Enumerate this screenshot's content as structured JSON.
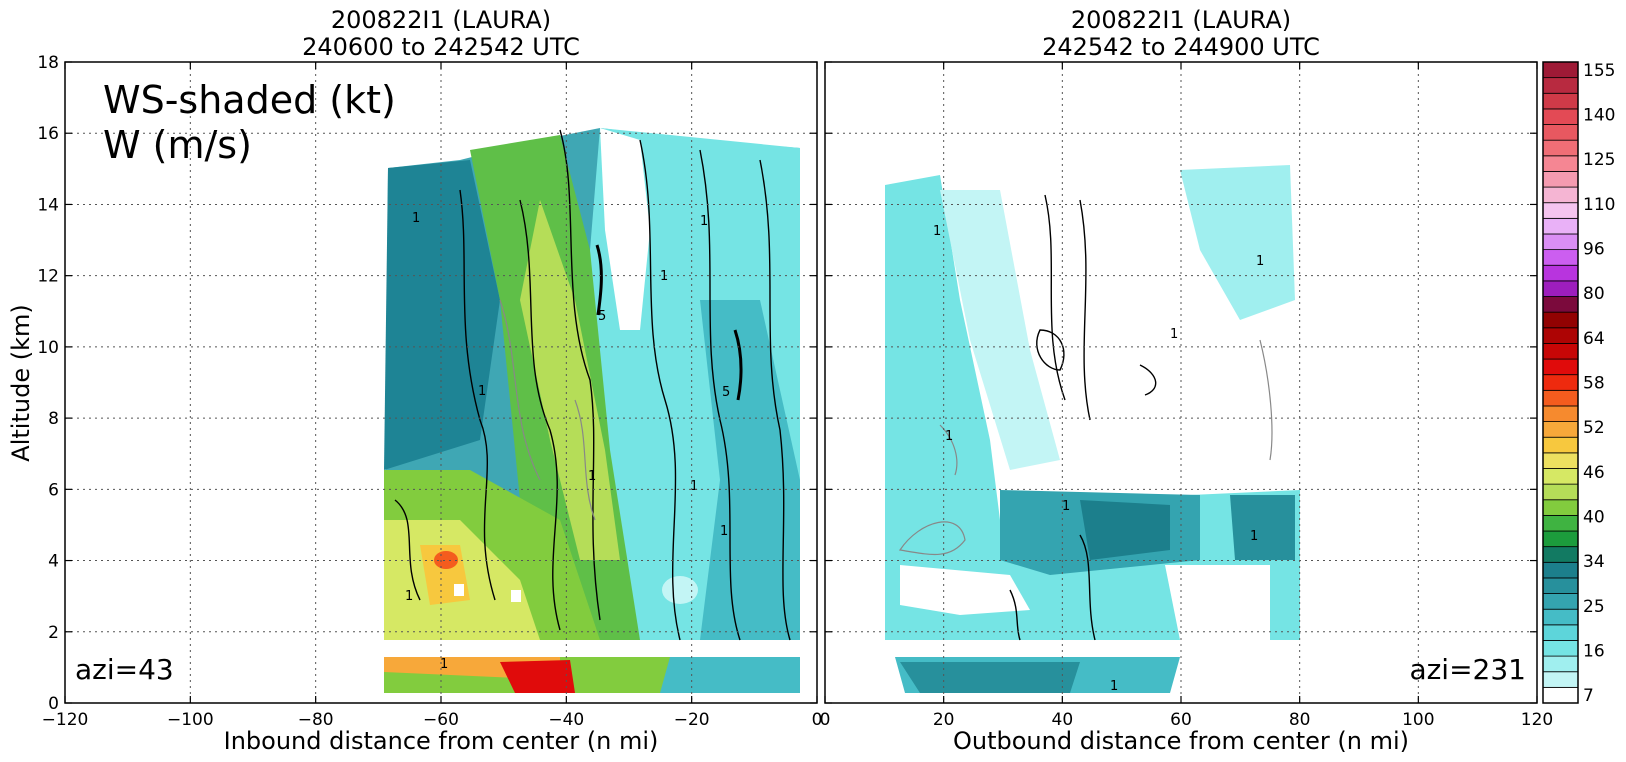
{
  "chart_data": [
    {
      "type": "heatmap",
      "title_line1": "200822I1 (LAURA)",
      "title_line2": "240600 to 242542 UTC",
      "xlabel": "Inbound distance from center (n mi)",
      "ylabel": "Altitude (km)",
      "xlim": [
        -120,
        0
      ],
      "ylim": [
        0,
        18
      ],
      "x_ticks": [
        -120,
        -100,
        -80,
        -60,
        -40,
        -20,
        0
      ],
      "y_ticks": [
        0,
        2,
        4,
        6,
        8,
        10,
        12,
        14,
        16,
        18
      ],
      "grid": true,
      "annotation_main_line1": "WS-shaded (kt)",
      "annotation_main_line2": "W (m/s)",
      "annotation_azimuth": "azi=43",
      "data_extent_x": [
        -69,
        0
      ],
      "data_extent_y": [
        0,
        16
      ],
      "gap_altitude_km": [
        1.35,
        1.8
      ],
      "wind_profile_kt": [
        {
          "x": -65,
          "alt": 1,
          "ws": 46
        },
        {
          "x": -60,
          "alt": 4,
          "ws": 50
        },
        {
          "x": -45,
          "alt": 1,
          "ws": 56
        },
        {
          "x": -40,
          "alt": 8,
          "ws": 40
        },
        {
          "x": -20,
          "alt": 8,
          "ws": 16
        },
        {
          "x": -65,
          "alt": 12,
          "ws": 25
        }
      ],
      "contour_labels": [
        "1",
        "1",
        "1",
        "1",
        "5",
        "1",
        "5",
        "1",
        "1",
        "1",
        "1"
      ]
    },
    {
      "type": "heatmap",
      "title_line1": "200822I1 (LAURA)",
      "title_line2": "242542 to 244900 UTC",
      "xlabel": "Outbound distance from center (n mi)",
      "xlim": [
        0,
        120
      ],
      "ylim": [
        0,
        18
      ],
      "x_ticks": [
        0,
        20,
        40,
        60,
        80,
        100,
        120
      ],
      "grid": true,
      "annotation_azimuth": "azi=231",
      "data_extent_x": [
        10,
        80
      ],
      "data_extent_y": [
        0,
        15
      ],
      "gap_altitude_km": [
        1.35,
        1.8
      ],
      "wind_profile_kt": [
        {
          "x": 50,
          "alt": 4.5,
          "ws": 25
        },
        {
          "x": 77,
          "alt": 5,
          "ws": 25
        },
        {
          "x": 30,
          "alt": 1,
          "ws": 22
        },
        {
          "x": 20,
          "alt": 8,
          "ws": 13
        }
      ],
      "contour_labels": [
        "1",
        "1",
        "1",
        "1",
        "1",
        "1",
        "1"
      ]
    }
  ],
  "colorbar": {
    "tick_labels": [
      "7",
      "16",
      "25",
      "34",
      "40",
      "46",
      "52",
      "58",
      "64",
      "80",
      "96",
      "110",
      "125",
      "140",
      "155"
    ],
    "colors": [
      "#ffffff",
      "#c3f5f5",
      "#a0efef",
      "#75e4e4",
      "#5dd5da",
      "#45bcc6",
      "#34a4b0",
      "#27909c",
      "#1c7f8c",
      "#127a62",
      "#1c9c3c",
      "#3fb341",
      "#82cc3e",
      "#b5dd58",
      "#d6e864",
      "#ede060",
      "#f7c83e",
      "#f7a83a",
      "#f68a2e",
      "#f45c1e",
      "#ee2a0e",
      "#e00b0b",
      "#c70606",
      "#ad0404",
      "#920202",
      "#7b0a3c",
      "#9d1ebd",
      "#b834de",
      "#cc5ef0",
      "#da8ef4",
      "#e9b1f7",
      "#f5c4ef",
      "#f5b5d3",
      "#f59bb0",
      "#f58693",
      "#f06e76",
      "#e85860",
      "#e34a55",
      "#d03a48",
      "#b82a40",
      "#9e1a36"
    ]
  }
}
